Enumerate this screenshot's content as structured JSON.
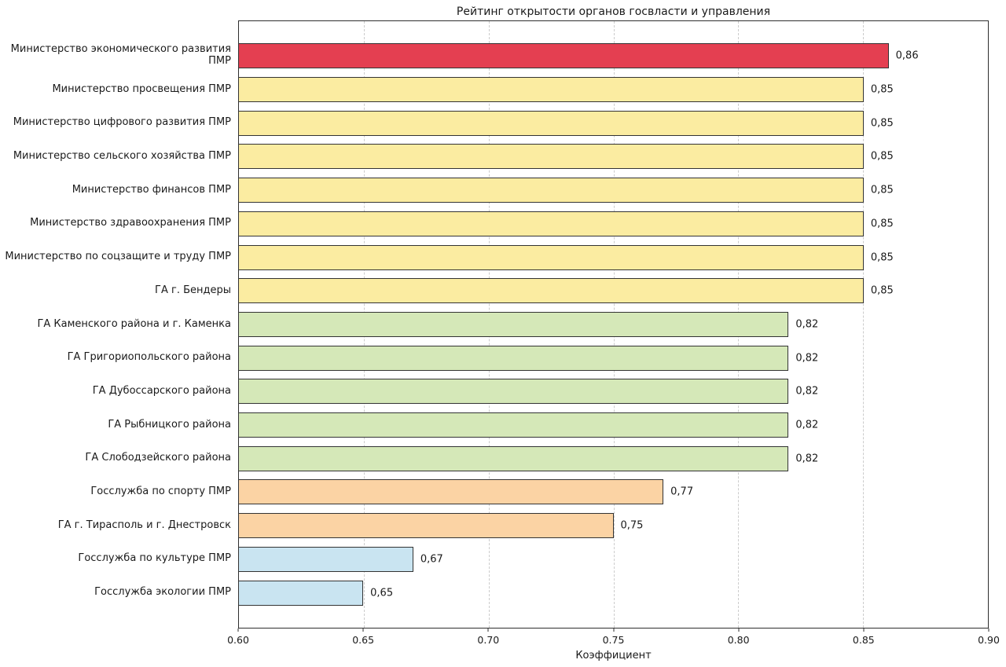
{
  "chart_data": {
    "type": "bar",
    "orientation": "horizontal",
    "title": "Рейтинг открытости органов госвласти и управления",
    "xlabel": "Коэффициент",
    "ylabel": "",
    "xlim": [
      0.6,
      0.9
    ],
    "xticks": [
      "0.60",
      "0.65",
      "0.70",
      "0.75",
      "0.80",
      "0.85",
      "0.90"
    ],
    "xtick_values": [
      0.6,
      0.65,
      0.7,
      0.75,
      0.8,
      0.85,
      0.9
    ],
    "grid": "vertical-dashed",
    "legend": "none",
    "categories": [
      "Министерство экономического развития ПМР",
      "Министерство просвещения ПМР",
      "Министерство цифрового развития ПМР",
      "Министерство сельского хозяйства ПМР",
      "Министерство финансов ПМР",
      "Министерство здравоохранения ПМР",
      "Министерство по соцзащите и труду ПМР",
      "ГА г. Бендеры",
      "ГА Каменского района и г. Каменка",
      "ГА Григориопольского района",
      "ГА Дубоссарского района",
      "ГА Рыбницкого района",
      "ГА Слободзейского района",
      "Госслужба по спорту ПМР",
      "ГА г. Тирасполь и г. Днестровск",
      "Госслужба по культуре ПМР",
      "Госслужба экологии ПМР"
    ],
    "values": [
      0.86,
      0.85,
      0.85,
      0.85,
      0.85,
      0.85,
      0.85,
      0.85,
      0.82,
      0.82,
      0.82,
      0.82,
      0.82,
      0.77,
      0.75,
      0.67,
      0.65
    ],
    "value_labels": [
      "0,86",
      "0,85",
      "0,85",
      "0,85",
      "0,85",
      "0,85",
      "0,85",
      "0,85",
      "0,82",
      "0,82",
      "0,82",
      "0,82",
      "0,82",
      "0,77",
      "0,75",
      "0,67",
      "0,65"
    ],
    "colors": [
      "#e43f51",
      "#fbeca1",
      "#fbeca1",
      "#fbeca1",
      "#fbeca1",
      "#fbeca1",
      "#fbeca1",
      "#fbeca1",
      "#d5e8b8",
      "#d5e8b8",
      "#d5e8b8",
      "#d5e8b8",
      "#d5e8b8",
      "#fbd3a4",
      "#fbd3a4",
      "#c9e4f1",
      "#c9e4f1"
    ],
    "bar_border_color": "#333333",
    "gridline_color": "#cccccc",
    "axis_color": "#2e2e2e",
    "background_color": "#ffffff"
  }
}
